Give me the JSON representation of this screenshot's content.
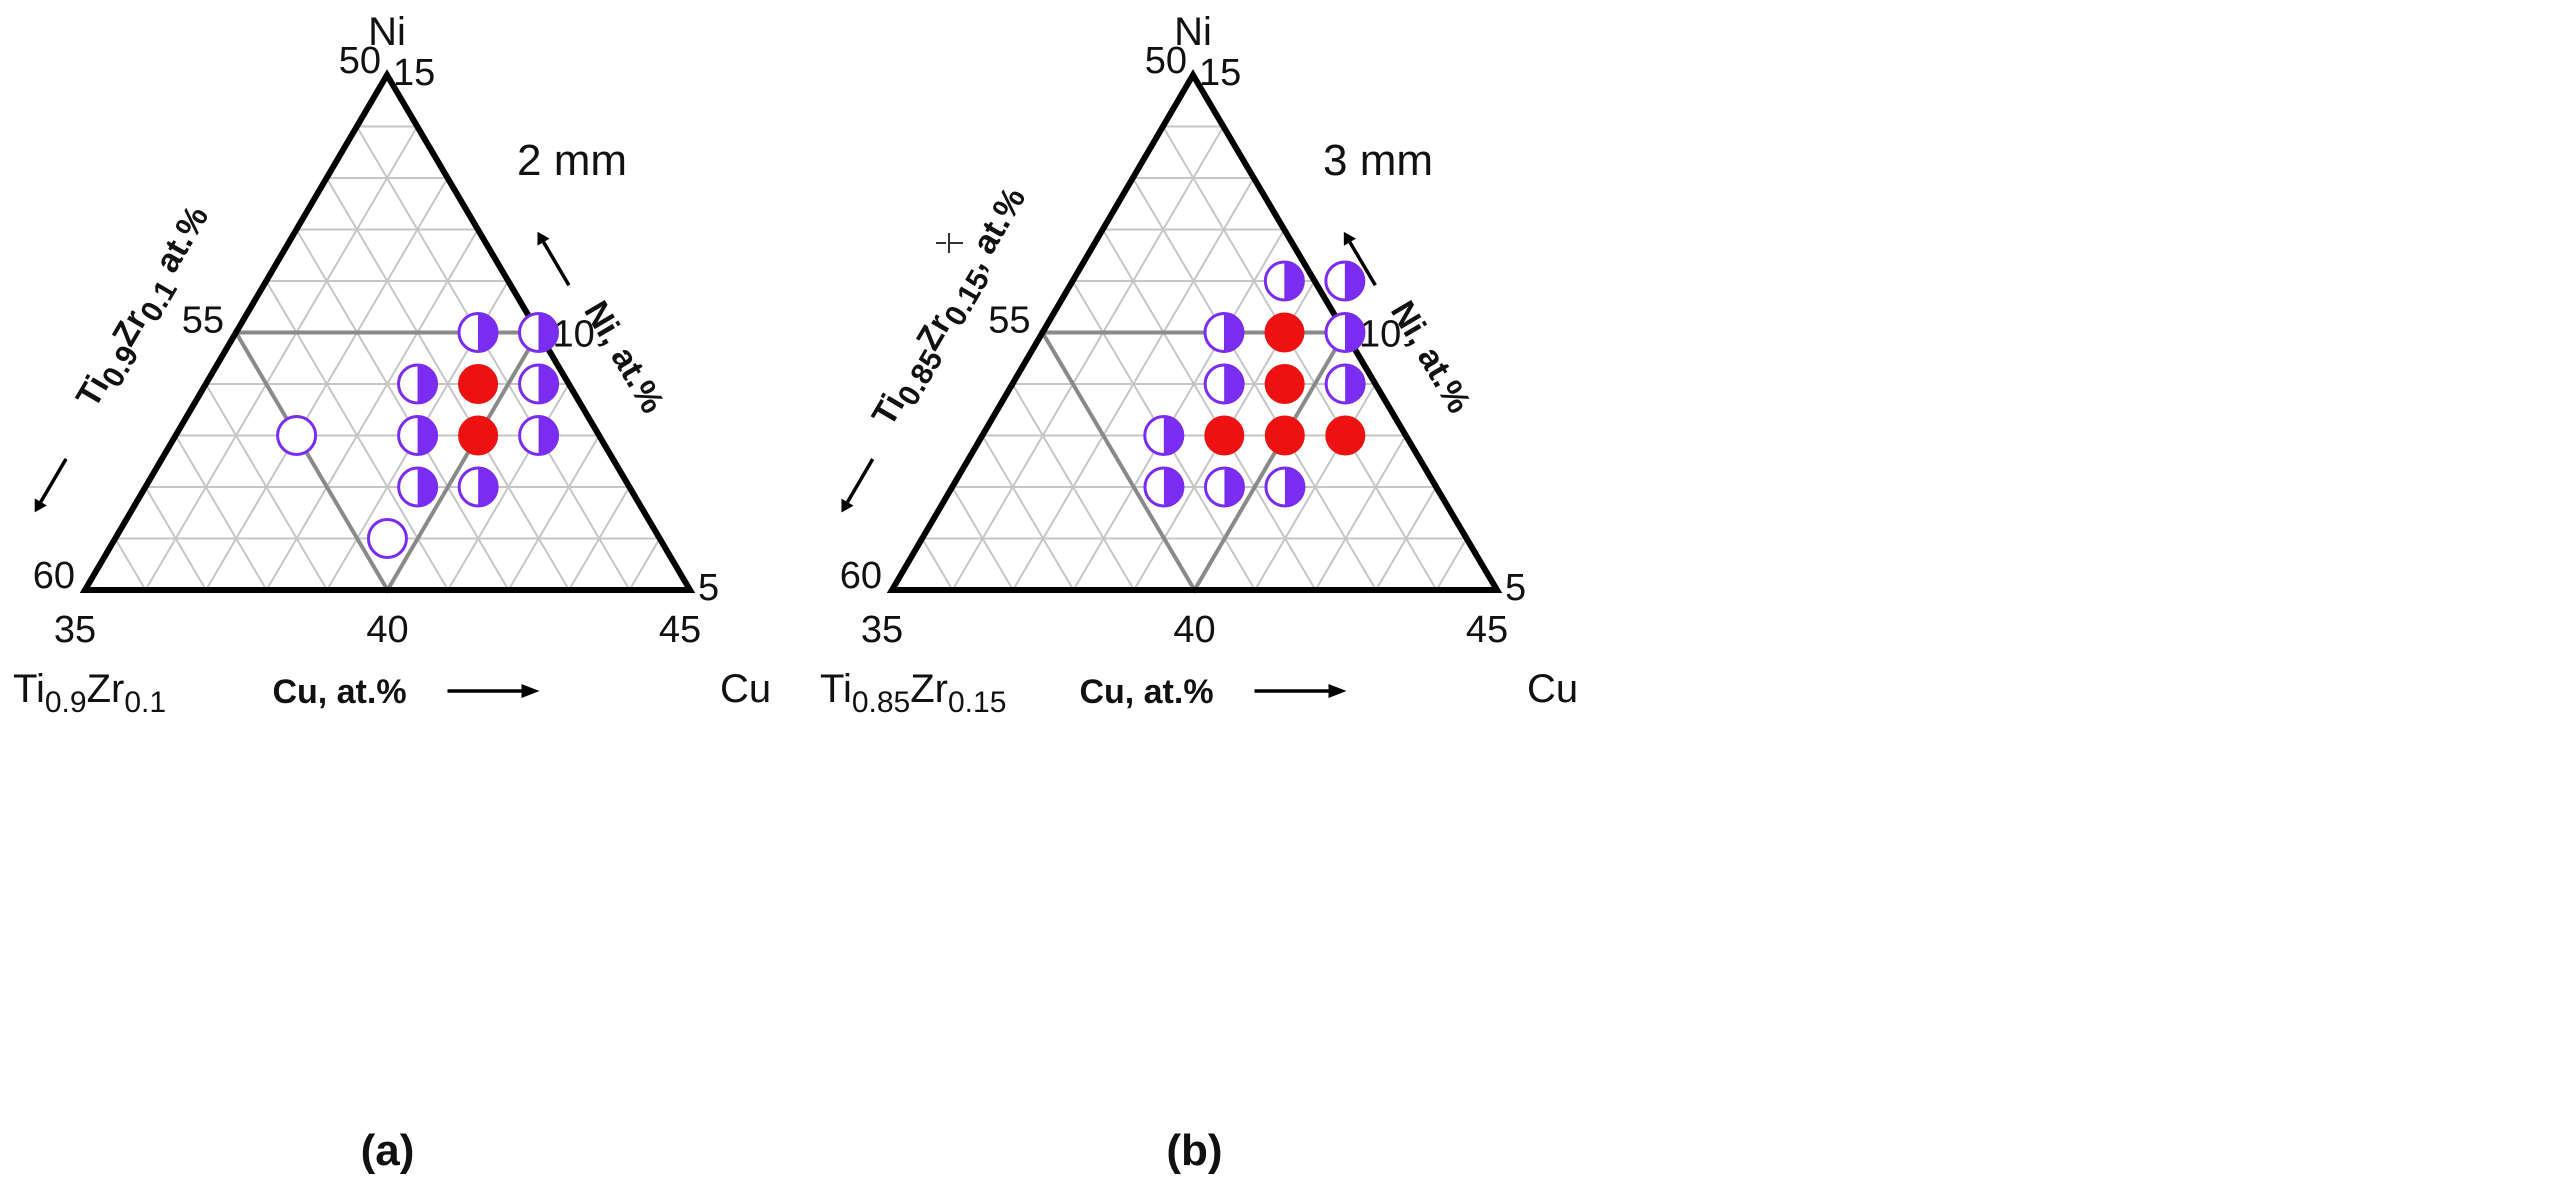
{
  "chart_data": [
    {
      "type": "scatter",
      "subtype": "ternary",
      "panel_label": "(a)",
      "note": "2 mm",
      "corner_labels": {
        "top": "Ni",
        "left_base": "Ti",
        "left_sub1": "0.9",
        "left_mid": "Zr",
        "left_sub2": "0.1",
        "right": "Cu"
      },
      "ticks": {
        "left_edge_top": "50",
        "left_edge_mid": "55",
        "left_edge_bottom": "60",
        "bottom_left": "35",
        "bottom_mid": "40",
        "bottom_right": "45",
        "right_edge_top": "15",
        "right_edge_mid": "10",
        "right_edge_bottom": "5"
      },
      "axis_titles": {
        "bottom": "Cu, at.%",
        "right": "Ni, at.%",
        "left_base": "Ti",
        "left_sub1": "0.9",
        "left_mid": "Zr",
        "left_sub2": "0.1",
        "left_tail": " at.%"
      },
      "ranges": {
        "Cu": [
          35,
          45
        ],
        "Ni": [
          5,
          15
        ],
        "TiZr": [
          50,
          60
        ]
      },
      "legend_colors": {
        "glassy": "#ee1111",
        "partial": "#7a2cf0",
        "crystalline": "#ffffff",
        "outline": "#7a2cf0"
      },
      "points": [
        {
          "cu": 39.0,
          "ni": 10.0,
          "state": "partial"
        },
        {
          "cu": 40.0,
          "ni": 10.0,
          "state": "partial"
        },
        {
          "cu": 38.5,
          "ni": 9.0,
          "state": "partial"
        },
        {
          "cu": 39.5,
          "ni": 9.0,
          "state": "glassy"
        },
        {
          "cu": 40.5,
          "ni": 9.0,
          "state": "partial"
        },
        {
          "cu": 37.0,
          "ni": 8.0,
          "state": "crystalline"
        },
        {
          "cu": 39.0,
          "ni": 8.0,
          "state": "partial"
        },
        {
          "cu": 40.0,
          "ni": 8.0,
          "state": "glassy"
        },
        {
          "cu": 41.0,
          "ni": 8.0,
          "state": "partial"
        },
        {
          "cu": 39.5,
          "ni": 7.0,
          "state": "partial"
        },
        {
          "cu": 40.5,
          "ni": 7.0,
          "state": "partial"
        },
        {
          "cu": 39.5,
          "ni": 6.0,
          "state": "crystalline"
        }
      ]
    },
    {
      "type": "scatter",
      "subtype": "ternary",
      "panel_label": "(b)",
      "note": "3 mm",
      "corner_labels": {
        "top": "Ni",
        "left_base": "Ti",
        "left_sub1": "0.85",
        "left_mid": "Zr",
        "left_sub2": "0.15",
        "right": "Cu"
      },
      "ticks": {
        "left_edge_top": "50",
        "left_edge_mid": "55",
        "left_edge_bottom": "60",
        "bottom_left": "35",
        "bottom_mid": "40",
        "bottom_right": "45",
        "right_edge_top": "15",
        "right_edge_mid": "10",
        "right_edge_bottom": "5"
      },
      "axis_titles": {
        "bottom": "Cu, at.%",
        "right": "Ni, at.%",
        "left_base": "Ti",
        "left_sub1": "0.85",
        "left_mid": "Zr",
        "left_sub2": "0.15",
        "left_tail": ", at.%"
      },
      "ranges": {
        "Cu": [
          35,
          45
        ],
        "Ni": [
          5,
          15
        ],
        "TiZr": [
          50,
          60
        ]
      },
      "legend_colors": {
        "glassy": "#ee1111",
        "partial": "#7a2cf0",
        "crystalline": "#ffffff",
        "outline": "#7a2cf0"
      },
      "points": [
        {
          "cu": 38.5,
          "ni": 11.0,
          "state": "partial"
        },
        {
          "cu": 39.5,
          "ni": 11.0,
          "state": "partial"
        },
        {
          "cu": 38.0,
          "ni": 10.0,
          "state": "partial"
        },
        {
          "cu": 39.0,
          "ni": 10.0,
          "state": "glassy"
        },
        {
          "cu": 40.0,
          "ni": 10.0,
          "state": "partial"
        },
        {
          "cu": 38.5,
          "ni": 9.0,
          "state": "partial"
        },
        {
          "cu": 39.5,
          "ni": 9.0,
          "state": "glassy"
        },
        {
          "cu": 40.5,
          "ni": 9.0,
          "state": "partial"
        },
        {
          "cu": 38.0,
          "ni": 8.0,
          "state": "partial"
        },
        {
          "cu": 39.0,
          "ni": 8.0,
          "state": "glassy"
        },
        {
          "cu": 40.0,
          "ni": 8.0,
          "state": "glassy"
        },
        {
          "cu": 41.0,
          "ni": 8.0,
          "state": "glassy"
        },
        {
          "cu": 38.5,
          "ni": 7.0,
          "state": "partial"
        },
        {
          "cu": 39.5,
          "ni": 7.0,
          "state": "partial"
        },
        {
          "cu": 40.5,
          "ni": 7.0,
          "state": "partial"
        }
      ]
    }
  ]
}
